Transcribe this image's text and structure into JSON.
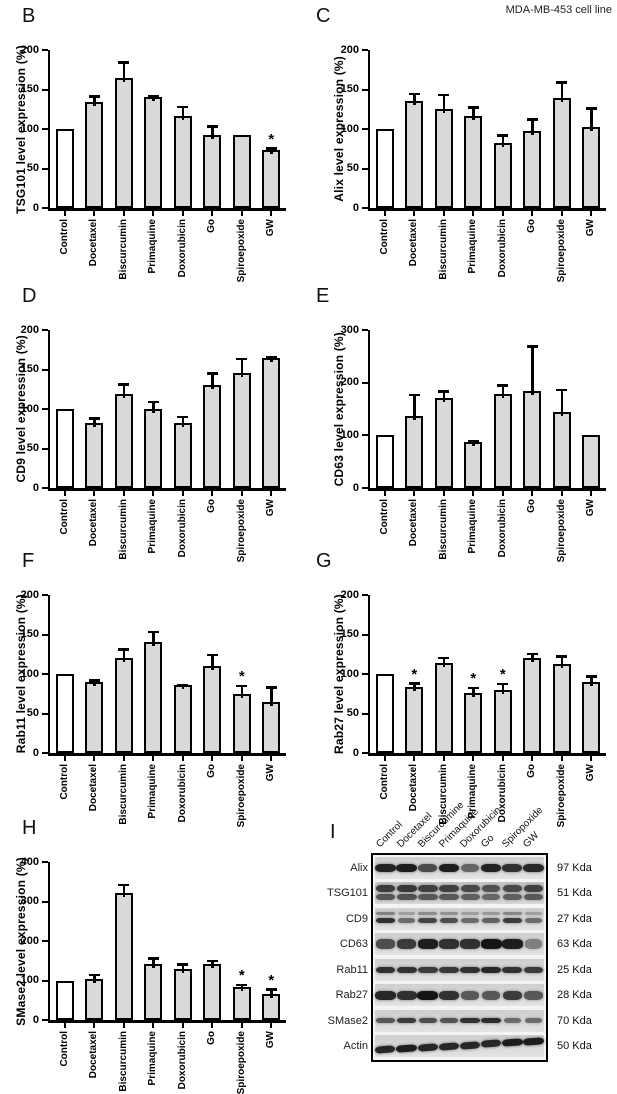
{
  "header": {
    "title": "MDA-MB-453 cell line"
  },
  "colors": {
    "bar_fill": "#d9d9d9",
    "control_fill": "#ffffff",
    "axis": "#000000",
    "blot_band": "#141414"
  },
  "chart_data": [
    {
      "type": "bar",
      "panel": "B",
      "ylabel": "TSG101 level expression (%)",
      "ylim": [
        0,
        200
      ],
      "yticks": [
        0,
        50,
        100,
        150,
        200
      ],
      "categories": [
        "Control",
        "Docetaxel",
        "Biscurcumin",
        "Primaquine",
        "Doxorubicin",
        "Go",
        "Spiroepoxide",
        "GW"
      ],
      "values": [
        100,
        134,
        165,
        140,
        116,
        93,
        92,
        73
      ],
      "errors": [
        0,
        8,
        20,
        2,
        13,
        11,
        0,
        3
      ],
      "sig": [
        false,
        false,
        false,
        false,
        false,
        false,
        false,
        true
      ]
    },
    {
      "type": "bar",
      "panel": "C",
      "ylabel": "Alix level expression (%)",
      "ylim": [
        0,
        200
      ],
      "yticks": [
        0,
        50,
        100,
        150,
        200
      ],
      "categories": [
        "Control",
        "Docetaxel",
        "Biscurcumin",
        "Primaquine",
        "Doxorubicin",
        "Go",
        "Spiroepoxide",
        "GW"
      ],
      "values": [
        100,
        135,
        125,
        117,
        82,
        97,
        139,
        102
      ],
      "errors": [
        0,
        10,
        19,
        11,
        11,
        16,
        21,
        25
      ],
      "sig": [
        false,
        false,
        false,
        false,
        false,
        false,
        false,
        false
      ]
    },
    {
      "type": "bar",
      "panel": "D",
      "ylabel": "CD9 level expression (%)",
      "ylim": [
        0,
        200
      ],
      "yticks": [
        0,
        50,
        100,
        150,
        200
      ],
      "categories": [
        "Control",
        "Docetaxel",
        "Biscurcumin",
        "Primaquine",
        "Doxorubicin",
        "Go",
        "Spiroepoxide",
        "GW"
      ],
      "values": [
        100,
        82,
        119,
        100,
        82,
        130,
        145,
        164
      ],
      "errors": [
        0,
        7,
        13,
        10,
        9,
        16,
        19,
        2
      ],
      "sig": [
        false,
        false,
        false,
        false,
        false,
        false,
        false,
        false
      ]
    },
    {
      "type": "bar",
      "panel": "E",
      "ylabel": "CD63 level expression (%)",
      "ylim": [
        0,
        300
      ],
      "yticks": [
        0,
        100,
        200,
        300
      ],
      "categories": [
        "Control",
        "Docetaxel",
        "Biscurcumin",
        "Primaquine",
        "Doxorubicin",
        "Go",
        "Spiroepoxide",
        "GW"
      ],
      "values": [
        100,
        137,
        170,
        88,
        179,
        184,
        145,
        100
      ],
      "errors": [
        0,
        41,
        15,
        3,
        17,
        86,
        43,
        0
      ],
      "sig": [
        false,
        false,
        false,
        false,
        false,
        false,
        false,
        false
      ]
    },
    {
      "type": "bar",
      "panel": "F",
      "ylabel": "Rab11 level expression (%)",
      "ylim": [
        0,
        200
      ],
      "yticks": [
        0,
        50,
        100,
        150,
        200
      ],
      "categories": [
        "Control",
        "Docetaxel",
        "Biscurcumin",
        "Primaquine",
        "Doxorubicin",
        "Go",
        "Spiroepoxide",
        "GW"
      ],
      "values": [
        100,
        90,
        120,
        140,
        86,
        110,
        75,
        65
      ],
      "errors": [
        0,
        3,
        12,
        14,
        1,
        15,
        11,
        19
      ],
      "sig": [
        false,
        false,
        false,
        false,
        false,
        false,
        true,
        false
      ]
    },
    {
      "type": "bar",
      "panel": "G",
      "ylabel": "Rab27 level expression (%)",
      "ylim": [
        0,
        200
      ],
      "yticks": [
        0,
        50,
        100,
        150,
        200
      ],
      "categories": [
        "Control",
        "Docetaxel",
        "Biscurcumin",
        "Primaquine",
        "Doxorubicin",
        "Go",
        "Spiroepoxide",
        "GW"
      ],
      "values": [
        100,
        83,
        114,
        76,
        80,
        120,
        113,
        90
      ],
      "errors": [
        0,
        6,
        7,
        7,
        8,
        6,
        10,
        8
      ],
      "sig": [
        false,
        true,
        false,
        true,
        true,
        false,
        false,
        false
      ]
    },
    {
      "type": "bar",
      "panel": "H",
      "ylabel": "SMase2 level expression (%)",
      "ylim": [
        0,
        400
      ],
      "yticks": [
        0,
        100,
        200,
        300,
        400
      ],
      "categories": [
        "Control",
        "Docetaxel",
        "Biscurcumin",
        "Primaquine",
        "Doxorubicin",
        "Go",
        "Spiroepoxide",
        "GW"
      ],
      "values": [
        100,
        103,
        321,
        141,
        129,
        141,
        84,
        66
      ],
      "errors": [
        0,
        13,
        23,
        17,
        13,
        10,
        6,
        13
      ],
      "sig": [
        false,
        false,
        false,
        false,
        false,
        false,
        true,
        true
      ]
    }
  ],
  "blot": {
    "panel": "I",
    "lanes": [
      "Control",
      "Docetaxel",
      "Biscurcumine",
      "Primaquine",
      "Doxorubicin",
      "Go",
      "Spiropoxide",
      "GW"
    ],
    "rows": [
      {
        "label": "Alix",
        "kda": "97 Kda",
        "style": "single",
        "band_h": 8,
        "intensities": [
          0.92,
          0.95,
          0.72,
          0.95,
          0.58,
          0.92,
          0.85,
          0.9
        ]
      },
      {
        "label": "TSG101",
        "kda": "51 Kda",
        "style": "smear",
        "band_h": 6,
        "intensities": [
          0.82,
          0.85,
          0.8,
          0.8,
          0.75,
          0.7,
          0.75,
          0.8
        ]
      },
      {
        "label": "CD9",
        "kda": "27 Kda",
        "style": "double",
        "band_h": 5,
        "intensities": [
          0.85,
          0.55,
          0.75,
          0.7,
          0.55,
          0.6,
          0.8,
          0.55
        ]
      },
      {
        "label": "CD63",
        "kda": "63 Kda",
        "style": "single",
        "band_h": 10,
        "intensities": [
          0.7,
          0.8,
          0.95,
          0.85,
          0.85,
          1,
          0.95,
          0.45
        ]
      },
      {
        "label": "Rab11",
        "kda": "25 Kda",
        "style": "single",
        "band_h": 6,
        "intensities": [
          0.85,
          0.85,
          0.8,
          0.82,
          0.85,
          0.9,
          0.85,
          0.8
        ]
      },
      {
        "label": "Rab27",
        "kda": "28 Kda",
        "style": "single",
        "band_h": 9,
        "intensities": [
          0.9,
          0.85,
          1,
          0.85,
          0.65,
          0.65,
          0.8,
          0.65
        ]
      },
      {
        "label": "SMase2",
        "kda": "70 Kda",
        "style": "single",
        "band_h": 5,
        "intensities": [
          0.65,
          0.8,
          0.7,
          0.68,
          0.85,
          0.88,
          0.55,
          0.55
        ]
      },
      {
        "label": "Actin",
        "kda": "50 Kda",
        "style": "slant",
        "band_h": 7,
        "intensities": [
          0.9,
          0.95,
          0.9,
          0.9,
          0.9,
          0.9,
          0.95,
          0.95
        ]
      }
    ]
  }
}
